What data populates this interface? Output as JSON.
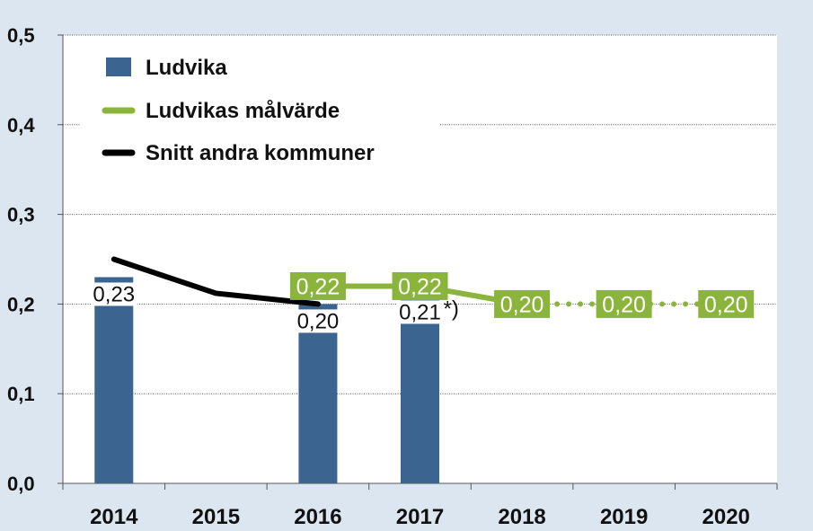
{
  "chart_data": {
    "type": "bar",
    "categories": [
      "2014",
      "2015",
      "2016",
      "2017",
      "2018",
      "2019",
      "2020"
    ],
    "ylim": [
      0,
      0.5
    ],
    "yticks": [
      0.0,
      0.1,
      0.2,
      0.3,
      0.4,
      0.5
    ],
    "ytick_labels": [
      "0,0",
      "0,1",
      "0,2",
      "0,3",
      "0,4",
      "0,5"
    ],
    "grid": true,
    "legend_position": "top-left",
    "series": [
      {
        "name": "Ludvika",
        "type": "bar",
        "color": "#3b6590",
        "values": [
          0.23,
          null,
          0.2,
          0.21,
          null,
          null,
          null
        ],
        "labels": [
          "0,23",
          "",
          "0,20",
          "0,21",
          "",
          "",
          ""
        ],
        "label_suffix": [
          "",
          "",
          "",
          "*)",
          "",
          "",
          ""
        ]
      },
      {
        "name": "Ludvikas målvärde",
        "type": "line",
        "color": "#8ab43c",
        "values": [
          null,
          null,
          0.22,
          0.22,
          0.2,
          0.2,
          0.2
        ],
        "labels": [
          "",
          "",
          "0,22",
          "0,22",
          "0,20",
          "0,20",
          "0,20"
        ],
        "dotted_from_index": 4
      },
      {
        "name": "Snitt andra kommuner",
        "type": "line",
        "color": "#000000",
        "values": [
          0.25,
          0.212,
          0.2,
          null,
          null,
          null,
          null
        ]
      }
    ]
  }
}
